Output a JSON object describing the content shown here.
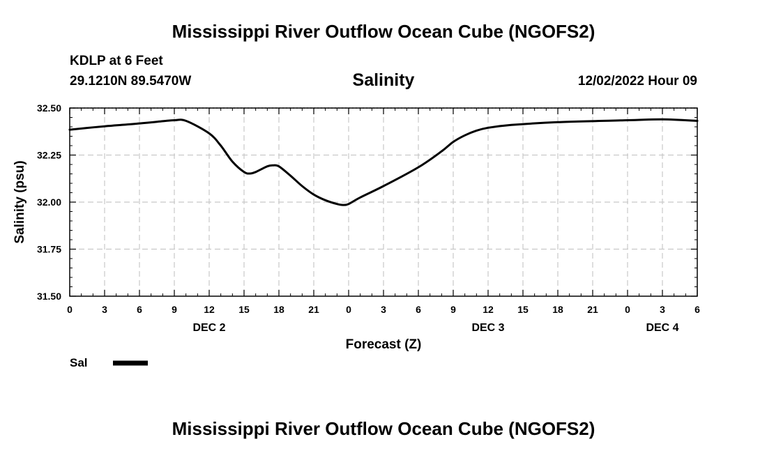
{
  "figure_title": "Mississippi River Outflow Ocean Cube (NGOFS2)",
  "footer_title": "Mississippi River Outflow Ocean Cube (NGOFS2)",
  "station": {
    "name": "KDLP at 6 Feet",
    "coords": "29.1210N  89.5470W"
  },
  "timestamp": "12/02/2022 Hour 09",
  "chart_data": {
    "type": "line",
    "title": "Salinity",
    "xlabel": "Forecast (Z)",
    "ylabel": "Salinity (psu)",
    "xlim": [
      0,
      54
    ],
    "ylim": [
      31.5,
      32.5
    ],
    "grid": true,
    "x_ticks": [
      0,
      3,
      6,
      9,
      12,
      15,
      18,
      21,
      24,
      27,
      30,
      33,
      36,
      39,
      42,
      45,
      48,
      51,
      54
    ],
    "x_tick_labels": [
      "0",
      "3",
      "6",
      "9",
      "12",
      "15",
      "18",
      "21",
      "0",
      "3",
      "6",
      "9",
      "12",
      "15",
      "18",
      "21",
      "0",
      "3",
      "6"
    ],
    "y_ticks": [
      31.5,
      31.75,
      32.0,
      32.25,
      32.5
    ],
    "y_tick_labels": [
      "31.50",
      "31.75",
      "32.00",
      "32.25",
      "32.50"
    ],
    "day_labels": [
      {
        "x": 12,
        "label": "DEC 2"
      },
      {
        "x": 36,
        "label": "DEC 3"
      },
      {
        "x": 51,
        "label": "DEC 4"
      }
    ],
    "series": [
      {
        "name": "Sal",
        "x": [
          0,
          3,
          6,
          8,
          9,
          10,
          12,
          13,
          14,
          15,
          15.5,
          16,
          17,
          17.5,
          18,
          19,
          20,
          21,
          22,
          23,
          23.5,
          24,
          25,
          27,
          30,
          32,
          33,
          34,
          35,
          36,
          38,
          42,
          48,
          51,
          54
        ],
        "values": [
          32.385,
          32.403,
          32.418,
          32.43,
          32.435,
          32.432,
          32.365,
          32.3,
          32.215,
          32.16,
          32.152,
          32.16,
          32.19,
          32.195,
          32.19,
          32.14,
          32.085,
          32.04,
          32.01,
          31.99,
          31.985,
          31.99,
          32.025,
          32.085,
          32.185,
          32.27,
          32.32,
          32.355,
          32.38,
          32.395,
          32.41,
          32.425,
          32.435,
          32.44,
          32.432
        ]
      }
    ]
  },
  "legend": {
    "label": "Sal"
  }
}
